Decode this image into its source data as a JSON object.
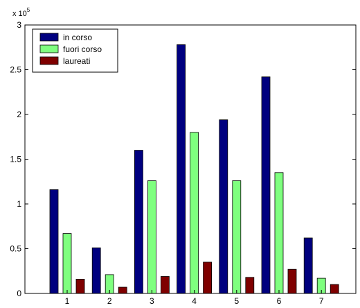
{
  "chart_data": {
    "type": "bar",
    "categories": [
      "1",
      "2",
      "3",
      "4",
      "5",
      "6",
      "7"
    ],
    "series": [
      {
        "name": "in corso",
        "color": "#00007f",
        "values": [
          1.16,
          0.51,
          1.6,
          2.78,
          1.94,
          2.42,
          0.62
        ]
      },
      {
        "name": "fuori corso",
        "color": "#7fff7f",
        "values": [
          0.67,
          0.21,
          1.26,
          1.8,
          1.26,
          1.35,
          0.17
        ]
      },
      {
        "name": "laureati",
        "color": "#7f0000",
        "values": [
          0.16,
          0.07,
          0.19,
          0.35,
          0.18,
          0.27,
          0.1
        ]
      }
    ],
    "ylim": [
      0,
      3
    ],
    "yticks": [
      "0",
      "0.5",
      "1",
      "1.5",
      "2",
      "2.5",
      "3"
    ],
    "multiplier": {
      "base": "x 10",
      "exponent": "5"
    },
    "legend_position": "top-left",
    "title": "",
    "xlabel": "",
    "ylabel": ""
  }
}
